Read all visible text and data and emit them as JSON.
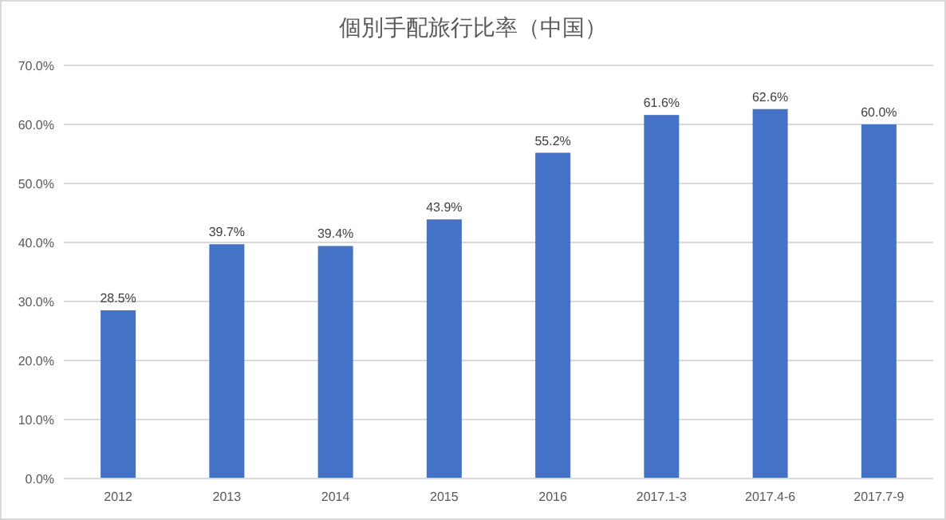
{
  "chart_data": {
    "type": "bar",
    "title": "個別手配旅行比率（中国）",
    "categories": [
      "2012",
      "2013",
      "2014",
      "2015",
      "2016",
      "2017.1-3",
      "2017.4-6",
      "2017.7-9"
    ],
    "values": [
      28.5,
      39.7,
      39.4,
      43.9,
      55.2,
      61.6,
      62.6,
      60.0
    ],
    "value_labels": [
      "28.5%",
      "39.7%",
      "39.4%",
      "43.9%",
      "55.2%",
      "61.6%",
      "62.6%",
      "60.0%"
    ],
    "color": "#4472c4",
    "ylim": [
      0,
      70
    ],
    "yticks": [
      {
        "value": 0,
        "label": "0.0%"
      },
      {
        "value": 10,
        "label": "10.0%"
      },
      {
        "value": 20,
        "label": "20.0%"
      },
      {
        "value": 30,
        "label": "30.0%"
      },
      {
        "value": 40,
        "label": "40.0%"
      },
      {
        "value": 50,
        "label": "50.0%"
      },
      {
        "value": 60,
        "label": "60.0%"
      },
      {
        "value": 70,
        "label": "70.0%"
      }
    ],
    "grid": "y"
  }
}
